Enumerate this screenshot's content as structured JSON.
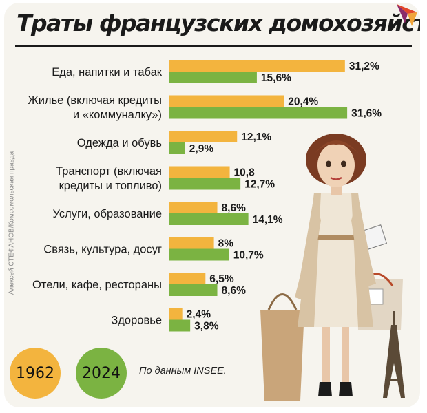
{
  "title": "Траты французских домохозяйств",
  "credit": "Алексей СТЕФАНОВ/Комсомольская правда",
  "source_note": "По данным INSEE.",
  "colors": {
    "series_1962": "#f3b43e",
    "series_2024": "#7bb342",
    "background": "#f6f4ee",
    "title": "#1a1a1a"
  },
  "icons": [
    "logo-flame-icon",
    "woman-shopping-illustration",
    "eiffel-tower-icon",
    "shopping-bag-icon"
  ],
  "chart_data": {
    "type": "bar",
    "orientation": "horizontal",
    "title": "Траты французских домохозяйств",
    "categories": [
      [
        "Еда, напитки и табак"
      ],
      [
        "Жилье (включая кредиты",
        "и «коммуналку»)"
      ],
      [
        "Одежда и обувь"
      ],
      [
        "Транспорт (включая",
        "кредиты и топливо)"
      ],
      [
        "Услуги, образование"
      ],
      [
        "Связь, культура, досуг"
      ],
      [
        "Отели, кафе, рестораны"
      ],
      [
        "Здоровье"
      ]
    ],
    "series": [
      {
        "name": "1962",
        "values": [
          31.2,
          20.4,
          12.1,
          10.8,
          8.6,
          8,
          6.5,
          2.4
        ],
        "labels": [
          "31,2%",
          "20,4%",
          "12,1%",
          "10,8",
          "8,6%",
          "8%",
          "6,5%",
          "2,4%"
        ]
      },
      {
        "name": "2024",
        "values": [
          15.6,
          31.6,
          2.9,
          12.7,
          14.1,
          10.7,
          8.6,
          3.8
        ],
        "labels": [
          "15,6%",
          "31,6%",
          "2,9%",
          "12,7%",
          "14,1%",
          "10,7%",
          "8,6%",
          "3,8%"
        ]
      }
    ],
    "legend": [
      "1962",
      "2024"
    ],
    "legend_placement": "bottom-left",
    "grid": false,
    "xlim": [
      0,
      32
    ]
  }
}
